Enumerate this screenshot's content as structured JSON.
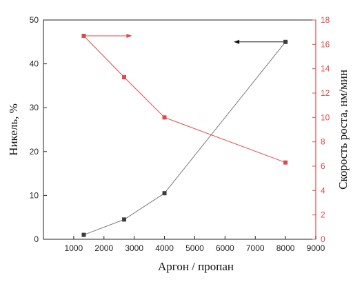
{
  "chart_data": {
    "type": "line",
    "xlabel": "Аргон / пропан",
    "ylabel_left": "Никель, %",
    "ylabel_right": "Скорость роста, нм/мин",
    "xlim": [
      0,
      9000
    ],
    "ylim_left": [
      0,
      50
    ],
    "ylim_right": [
      0,
      18
    ],
    "x_ticks": [
      1000,
      2000,
      3000,
      4000,
      5000,
      6000,
      7000,
      8000,
      9000
    ],
    "y_ticks_left": [
      0,
      10,
      20,
      30,
      40,
      50
    ],
    "y_ticks_right": [
      0,
      2,
      4,
      6,
      8,
      10,
      12,
      14,
      16,
      18
    ],
    "grid": false,
    "series": [
      {
        "axis": "left",
        "color": "#3c3c3c",
        "line_color": "#7a7a7a",
        "marker": "square",
        "indicator_arrow": "left",
        "x": [
          1333,
          2667,
          4000,
          8000
        ],
        "y": [
          1.0,
          4.5,
          10.5,
          45.0
        ]
      },
      {
        "axis": "right",
        "color": "#e0484b",
        "line_color": "#e0484b",
        "marker": "square",
        "indicator_arrow": "right",
        "x": [
          1333,
          2667,
          4000,
          8000
        ],
        "y": [
          16.7,
          13.3,
          10.0,
          6.3
        ]
      }
    ]
  }
}
